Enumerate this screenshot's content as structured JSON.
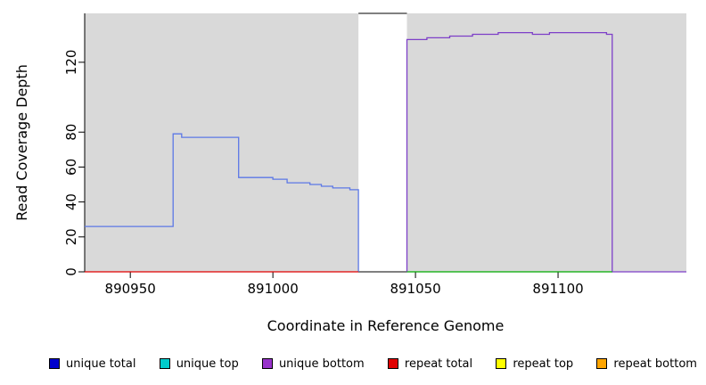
{
  "chart_data": {
    "type": "line",
    "subtype": "step-coverage",
    "title": "",
    "xlabel": "Coordinate in Reference Genome",
    "ylabel": "Read Coverage Depth",
    "xlim": [
      890934,
      891145
    ],
    "ylim": [
      0,
      148
    ],
    "x_ticks": [
      890950,
      891000,
      891050,
      891100
    ],
    "y_ticks": [
      0,
      20,
      40,
      60,
      80,
      120
    ],
    "grid": false,
    "legend_position": "bottom",
    "background_color": "#ffffff",
    "band_color": "#d9d9d9",
    "background_bands": [
      {
        "x0": 890934,
        "x1": 891030,
        "label": "left-aligned-block"
      },
      {
        "x0": 891047,
        "x1": 891145,
        "label": "right-aligned-block"
      }
    ],
    "gap_top_border": {
      "x0": 891030,
      "x1": 891047
    },
    "series": [
      {
        "name": "unique total (blue step line, left block)",
        "color": "#5c78e6",
        "points": [
          [
            890934,
            26
          ],
          [
            890965,
            26
          ],
          [
            890965,
            79
          ],
          [
            890968,
            79
          ],
          [
            890968,
            77
          ],
          [
            890988,
            77
          ],
          [
            890988,
            54
          ],
          [
            891000,
            54
          ],
          [
            891000,
            53
          ],
          [
            891005,
            53
          ],
          [
            891005,
            51
          ],
          [
            891013,
            51
          ],
          [
            891013,
            50
          ],
          [
            891017,
            50
          ],
          [
            891017,
            49
          ],
          [
            891021,
            49
          ],
          [
            891021,
            48
          ],
          [
            891027,
            48
          ],
          [
            891027,
            47
          ],
          [
            891030,
            47
          ],
          [
            891030,
            0
          ]
        ]
      },
      {
        "name": "unique bottom (purple step line, right block)",
        "color": "#7d3fc8",
        "points": [
          [
            891047,
            0
          ],
          [
            891047,
            133
          ],
          [
            891054,
            133
          ],
          [
            891054,
            134
          ],
          [
            891062,
            134
          ],
          [
            891062,
            135
          ],
          [
            891070,
            135
          ],
          [
            891070,
            136
          ],
          [
            891079,
            136
          ],
          [
            891079,
            137
          ],
          [
            891091,
            137
          ],
          [
            891091,
            136
          ],
          [
            891097,
            136
          ],
          [
            891097,
            137
          ],
          [
            891117,
            137
          ],
          [
            891117,
            136
          ],
          [
            891119,
            136
          ],
          [
            891119,
            0
          ],
          [
            891145,
            0
          ]
        ]
      },
      {
        "name": "repeat total (red baseline, left block)",
        "color": "#e00000",
        "points": [
          [
            890934,
            0
          ],
          [
            891030,
            0
          ]
        ]
      },
      {
        "name": "green baseline (right block, unlabeled)",
        "color": "#00aa00",
        "points": [
          [
            891047,
            0
          ],
          [
            891119,
            0
          ]
        ]
      }
    ]
  },
  "legend": {
    "items": [
      {
        "label": "unique total",
        "color": "#0000cd"
      },
      {
        "label": "unique top",
        "color": "#00cccc"
      },
      {
        "label": "unique bottom",
        "color": "#9933cc"
      },
      {
        "label": "repeat total",
        "color": "#e00000"
      },
      {
        "label": "repeat top",
        "color": "#ffff00"
      },
      {
        "label": "repeat bottom",
        "color": "#ffa500"
      }
    ]
  }
}
